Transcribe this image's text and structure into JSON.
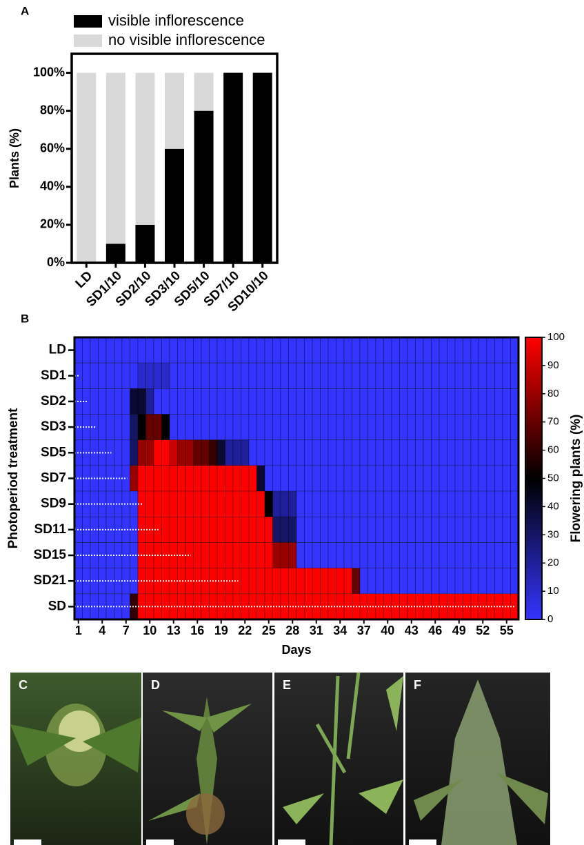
{
  "chart_data": [
    {
      "type": "bar",
      "panel_label": "A",
      "stacked": true,
      "ylabel": "Plants (%)",
      "categories": [
        "LD",
        "SD1/10",
        "SD2/10",
        "SD3/10",
        "SD5/10",
        "SD7/10",
        "SD10/10"
      ],
      "series": [
        {
          "name": "visible inflorescence",
          "color": "#000000",
          "values": [
            0,
            10,
            20,
            60,
            80,
            100,
            100
          ]
        },
        {
          "name": "no visible inflorescence",
          "color": "#d9d9d9",
          "values": [
            100,
            90,
            80,
            40,
            20,
            0,
            0
          ]
        }
      ],
      "ylim": [
        0,
        110
      ],
      "yticks": [
        {
          "value": 0,
          "label": "0%"
        },
        {
          "value": 20,
          "label": "20%"
        },
        {
          "value": 40,
          "label": "40%"
        },
        {
          "value": 60,
          "label": "60%"
        },
        {
          "value": 80,
          "label": "80%"
        },
        {
          "value": 100,
          "label": "100%"
        }
      ]
    },
    {
      "type": "heatmap",
      "panel_label": "B",
      "ylabel": "Photoperiod treatment",
      "xlabel": "Days",
      "colorbar_label": "Flowering plants (%)",
      "rows": [
        "LD",
        "SD1",
        "SD2",
        "SD3",
        "SD5",
        "SD7",
        "SD9",
        "SD11",
        "SD15",
        "SD21",
        "SD"
      ],
      "x": [
        1,
        2,
        3,
        4,
        5,
        6,
        7,
        8,
        9,
        10,
        11,
        12,
        13,
        14,
        15,
        16,
        17,
        18,
        19,
        20,
        21,
        22,
        23,
        24,
        25,
        26,
        27,
        28,
        29,
        30,
        31,
        32,
        33,
        34,
        35,
        36,
        37,
        38,
        39,
        40,
        41,
        42,
        43,
        44,
        45,
        46,
        47,
        48,
        49,
        50,
        51,
        52,
        53,
        54,
        55,
        56
      ],
      "xticks": [
        1,
        4,
        7,
        10,
        13,
        16,
        19,
        22,
        25,
        28,
        31,
        34,
        37,
        40,
        43,
        46,
        49,
        52,
        55
      ],
      "sd_days": [
        null,
        1,
        2,
        3,
        5,
        7,
        9,
        11,
        15,
        21,
        56
      ],
      "values": [
        [
          0,
          0,
          0,
          0,
          0,
          0,
          0,
          0,
          0,
          0,
          0,
          0,
          0,
          0,
          0,
          0,
          0,
          0,
          0,
          0,
          0,
          0,
          0,
          0,
          0,
          0,
          0,
          0,
          0,
          0,
          0,
          0,
          0,
          0,
          0,
          0,
          0,
          0,
          0,
          0,
          0,
          0,
          0,
          0,
          0,
          0,
          0,
          0,
          0,
          0,
          0,
          0,
          0,
          0,
          0,
          0
        ],
        [
          0,
          0,
          0,
          0,
          0,
          0,
          0,
          0,
          10,
          10,
          10,
          10,
          0,
          0,
          0,
          0,
          0,
          0,
          0,
          0,
          0,
          0,
          0,
          0,
          0,
          0,
          0,
          0,
          0,
          0,
          0,
          0,
          0,
          0,
          0,
          0,
          0,
          0,
          0,
          0,
          0,
          0,
          0,
          0,
          0,
          0,
          0,
          0,
          0,
          0,
          0,
          0,
          0,
          0,
          0,
          0
        ],
        [
          0,
          0,
          0,
          0,
          0,
          0,
          0,
          40,
          40,
          20,
          0,
          0,
          0,
          0,
          0,
          0,
          0,
          0,
          0,
          0,
          0,
          0,
          0,
          0,
          0,
          0,
          0,
          0,
          0,
          0,
          0,
          0,
          0,
          0,
          0,
          0,
          0,
          0,
          0,
          0,
          0,
          0,
          0,
          0,
          0,
          0,
          0,
          0,
          0,
          0,
          0,
          0,
          0,
          0,
          0,
          0
        ],
        [
          0,
          0,
          0,
          0,
          0,
          0,
          0,
          30,
          50,
          70,
          70,
          50,
          0,
          0,
          0,
          0,
          0,
          0,
          0,
          0,
          0,
          0,
          0,
          0,
          0,
          0,
          0,
          0,
          0,
          0,
          0,
          0,
          0,
          0,
          0,
          0,
          0,
          0,
          0,
          0,
          0,
          0,
          0,
          0,
          0,
          0,
          0,
          0,
          0,
          0,
          0,
          0,
          0,
          0,
          0,
          0
        ],
        [
          0,
          0,
          0,
          0,
          0,
          0,
          0,
          30,
          80,
          80,
          100,
          100,
          90,
          80,
          80,
          70,
          70,
          60,
          40,
          20,
          20,
          20,
          0,
          0,
          0,
          0,
          0,
          0,
          0,
          0,
          0,
          0,
          0,
          0,
          0,
          0,
          0,
          0,
          0,
          0,
          0,
          0,
          0,
          0,
          0,
          0,
          0,
          0,
          0,
          0,
          0,
          0,
          0,
          0,
          0,
          0
        ],
        [
          0,
          0,
          0,
          0,
          0,
          0,
          0,
          80,
          100,
          100,
          100,
          100,
          100,
          100,
          100,
          100,
          100,
          100,
          100,
          100,
          100,
          100,
          100,
          40,
          0,
          0,
          0,
          0,
          0,
          0,
          0,
          0,
          0,
          0,
          0,
          0,
          0,
          0,
          0,
          0,
          0,
          0,
          0,
          0,
          0,
          0,
          0,
          0,
          0,
          0,
          0,
          0,
          0,
          0,
          0,
          0
        ],
        [
          0,
          0,
          0,
          0,
          0,
          0,
          0,
          0,
          100,
          100,
          100,
          100,
          100,
          100,
          100,
          100,
          100,
          100,
          100,
          100,
          100,
          100,
          100,
          100,
          50,
          20,
          20,
          20,
          0,
          0,
          0,
          0,
          0,
          0,
          0,
          0,
          0,
          0,
          0,
          0,
          0,
          0,
          0,
          0,
          0,
          0,
          0,
          0,
          0,
          0,
          0,
          0,
          0,
          0,
          0,
          0
        ],
        [
          0,
          0,
          0,
          0,
          0,
          0,
          0,
          0,
          100,
          100,
          100,
          100,
          100,
          100,
          100,
          100,
          100,
          100,
          100,
          100,
          100,
          100,
          100,
          100,
          100,
          30,
          30,
          30,
          0,
          0,
          0,
          0,
          0,
          0,
          0,
          0,
          0,
          0,
          0,
          0,
          0,
          0,
          0,
          0,
          0,
          0,
          0,
          0,
          0,
          0,
          0,
          0,
          0,
          0,
          0,
          0
        ],
        [
          0,
          0,
          0,
          0,
          0,
          0,
          0,
          0,
          100,
          100,
          100,
          100,
          100,
          100,
          100,
          100,
          100,
          100,
          100,
          100,
          100,
          100,
          100,
          100,
          100,
          80,
          80,
          80,
          0,
          0,
          0,
          0,
          0,
          0,
          0,
          0,
          0,
          0,
          0,
          0,
          0,
          0,
          0,
          0,
          0,
          0,
          0,
          0,
          0,
          0,
          0,
          0,
          0,
          0,
          0,
          0
        ],
        [
          0,
          0,
          0,
          0,
          0,
          0,
          0,
          0,
          100,
          100,
          100,
          100,
          100,
          100,
          100,
          100,
          100,
          100,
          100,
          100,
          100,
          100,
          100,
          100,
          100,
          100,
          100,
          100,
          100,
          100,
          100,
          100,
          100,
          100,
          100,
          70,
          0,
          0,
          0,
          0,
          0,
          0,
          0,
          0,
          0,
          0,
          0,
          0,
          0,
          0,
          0,
          0,
          0,
          0,
          0,
          0
        ],
        [
          0,
          0,
          0,
          0,
          0,
          0,
          0,
          60,
          100,
          100,
          100,
          100,
          100,
          100,
          100,
          100,
          100,
          100,
          100,
          100,
          100,
          100,
          100,
          100,
          100,
          100,
          100,
          100,
          100,
          100,
          100,
          100,
          100,
          100,
          100,
          100,
          100,
          100,
          100,
          100,
          100,
          100,
          100,
          100,
          100,
          100,
          100,
          100,
          100,
          100,
          100,
          100,
          100,
          100,
          100,
          100
        ]
      ],
      "colorscale": [
        "#3434ff",
        "#000000",
        "#ff0000"
      ],
      "zlim": [
        0,
        100
      ],
      "zticks": [
        0,
        10,
        20,
        30,
        40,
        50,
        60,
        70,
        80,
        90,
        100
      ]
    }
  ],
  "panels": [
    {
      "label": "C"
    },
    {
      "label": "D"
    },
    {
      "label": "E"
    },
    {
      "label": "F"
    }
  ]
}
